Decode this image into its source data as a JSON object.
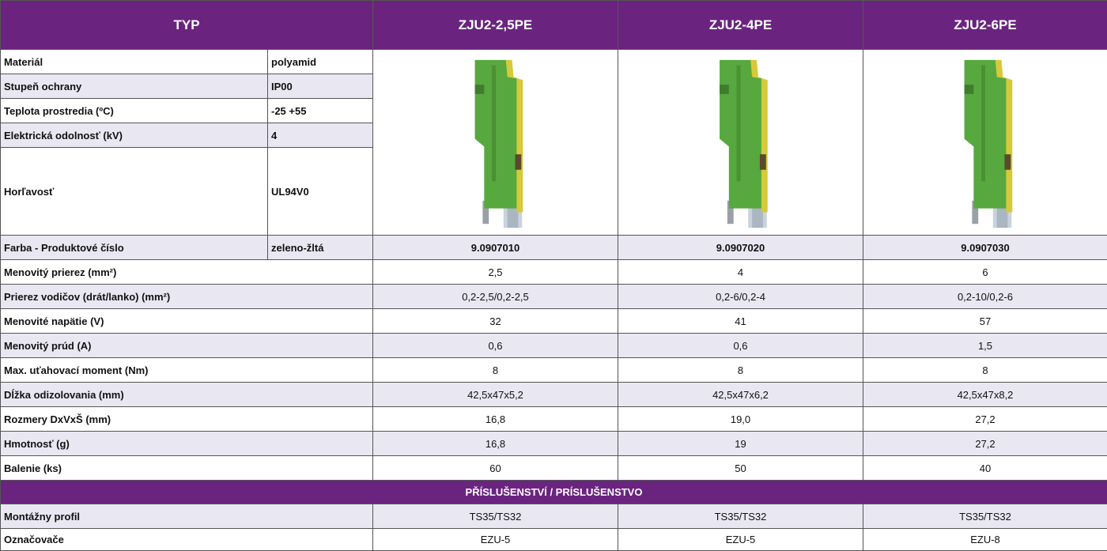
{
  "header": [
    "TYP",
    "ZJU2-2,5PE",
    "ZJU2-4PE",
    "ZJU2-6PE"
  ],
  "properties": [
    [
      "Materiál",
      "polyamid"
    ],
    [
      "Stupeň ochrany",
      "IP00"
    ],
    [
      "Teplota prostredia (ºC)",
      "-25 +55"
    ],
    [
      "Elektrická odolnosť (kV)",
      "4"
    ],
    [
      "Horľavosť",
      "UL94V0"
    ]
  ],
  "product_numbers": {
    "label": "Farba - Produktové číslo",
    "color": "zeleno-žltá",
    "values": [
      "9.0907010",
      "9.0907020",
      "9.0907030"
    ]
  },
  "specs": [
    {
      "label": "Menovitý prierez (mm²)",
      "values": [
        "2,5",
        "4",
        "6"
      ]
    },
    {
      "label": "Prierez vodičov (drát/lanko) (mm²)",
      "values": [
        "0,2-2,5/0,2-2,5",
        "0,2-6/0,2-4",
        "0,2-10/0,2-6"
      ]
    },
    {
      "label": "Menovité napätie (V)",
      "values": [
        "32",
        "41",
        "57"
      ]
    },
    {
      "label": "Menovitý prúd (A)",
      "values": [
        "0,6",
        "0,6",
        "1,5"
      ]
    },
    {
      "label": "Max. uťahovací moment (Nm)",
      "values": [
        "8",
        "8",
        "8"
      ]
    },
    {
      "label": "Dĺžka odizolovania (mm)",
      "values": [
        "42,5x47x5,2",
        "42,5x47x6,2",
        "42,5x47x8,2"
      ]
    },
    {
      "label": "Rozmery DxVxŠ (mm)",
      "values": [
        "16,8",
        "19,0",
        "27,2"
      ]
    },
    {
      "label": "Hmotnosť (g)",
      "values": [
        "16,8",
        "19",
        "27,2"
      ]
    },
    {
      "label": "Balenie (ks)",
      "values": [
        "60",
        "50",
        "40"
      ]
    }
  ],
  "accessories": {
    "title": "PŘÍSLUŠENSTVÍ / PRÍSLUŠENSTVO",
    "rows": [
      {
        "label": "Montážny profil",
        "values": [
          "TS35/TS32",
          "TS35/TS32",
          "TS35/TS32"
        ]
      },
      {
        "label": "Označovače",
        "values": [
          "EZU-5",
          "EZU-5",
          "EZU-8"
        ]
      }
    ]
  }
}
